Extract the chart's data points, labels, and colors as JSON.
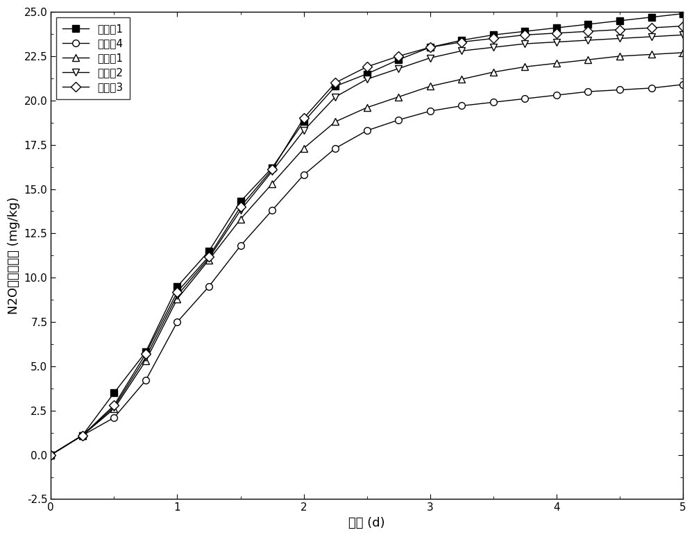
{
  "series": [
    {
      "label": "实施入1",
      "marker": "s",
      "marker_fill": "black",
      "line_color": "black",
      "x": [
        0,
        0.25,
        0.5,
        0.75,
        1.0,
        1.25,
        1.5,
        1.75,
        2.0,
        2.25,
        2.5,
        2.75,
        3.0,
        3.25,
        3.5,
        3.75,
        4.0,
        4.25,
        4.5,
        4.75,
        5.0
      ],
      "y": [
        0.0,
        1.1,
        3.5,
        5.8,
        9.5,
        11.5,
        14.3,
        16.2,
        18.8,
        20.8,
        21.5,
        22.3,
        23.0,
        23.4,
        23.7,
        23.9,
        24.1,
        24.3,
        24.5,
        24.7,
        24.9
      ]
    },
    {
      "label": "实施入4",
      "marker": "o",
      "marker_fill": "white",
      "line_color": "black",
      "x": [
        0,
        0.25,
        0.5,
        0.75,
        1.0,
        1.25,
        1.5,
        1.75,
        2.0,
        2.25,
        2.5,
        2.75,
        3.0,
        3.25,
        3.5,
        3.75,
        4.0,
        4.25,
        4.5,
        4.75,
        5.0
      ],
      "y": [
        0.0,
        1.1,
        2.1,
        4.2,
        7.5,
        9.5,
        11.8,
        13.8,
        15.8,
        17.3,
        18.3,
        18.9,
        19.4,
        19.7,
        19.9,
        20.1,
        20.3,
        20.5,
        20.6,
        20.7,
        20.9
      ]
    },
    {
      "label": "对比入1",
      "marker": "^",
      "marker_fill": "white",
      "line_color": "black",
      "x": [
        0,
        0.25,
        0.5,
        0.75,
        1.0,
        1.25,
        1.5,
        1.75,
        2.0,
        2.25,
        2.5,
        2.75,
        3.0,
        3.25,
        3.5,
        3.75,
        4.0,
        4.25,
        4.5,
        4.75,
        5.0
      ],
      "y": [
        0.0,
        1.1,
        2.6,
        5.3,
        8.8,
        11.0,
        13.3,
        15.3,
        17.3,
        18.8,
        19.6,
        20.2,
        20.8,
        21.2,
        21.6,
        21.9,
        22.1,
        22.3,
        22.5,
        22.6,
        22.7
      ]
    },
    {
      "label": "对比入2",
      "marker": "v",
      "marker_fill": "white",
      "line_color": "black",
      "x": [
        0,
        0.25,
        0.5,
        0.75,
        1.0,
        1.25,
        1.5,
        1.75,
        2.0,
        2.25,
        2.5,
        2.75,
        3.0,
        3.25,
        3.5,
        3.75,
        4.0,
        4.25,
        4.5,
        4.75,
        5.0
      ],
      "y": [
        0.0,
        1.1,
        2.7,
        5.5,
        9.0,
        11.1,
        13.8,
        16.0,
        18.3,
        20.2,
        21.2,
        21.8,
        22.4,
        22.8,
        23.0,
        23.2,
        23.3,
        23.4,
        23.5,
        23.6,
        23.7
      ]
    },
    {
      "label": "对比入3",
      "marker": "D",
      "marker_fill": "white",
      "line_color": "black",
      "x": [
        0,
        0.25,
        0.5,
        0.75,
        1.0,
        1.25,
        1.5,
        1.75,
        2.0,
        2.25,
        2.5,
        2.75,
        3.0,
        3.25,
        3.5,
        3.75,
        4.0,
        4.25,
        4.5,
        4.75,
        5.0
      ],
      "y": [
        0.0,
        1.1,
        2.8,
        5.7,
        9.2,
        11.2,
        14.0,
        16.1,
        19.0,
        21.0,
        21.9,
        22.5,
        23.0,
        23.3,
        23.5,
        23.7,
        23.8,
        23.9,
        24.0,
        24.1,
        24.2
      ]
    }
  ],
  "xlabel": "时间 (d)",
  "ylabel": "N2O累积排放量 (mg/kg)",
  "xlim": [
    0,
    5
  ],
  "ylim": [
    -2.5,
    25.0
  ],
  "xticks": [
    0,
    1,
    2,
    3,
    4,
    5
  ],
  "yticks": [
    -2.5,
    0.0,
    2.5,
    5.0,
    7.5,
    10.0,
    12.5,
    15.0,
    17.5,
    20.0,
    22.5,
    25.0
  ],
  "background_color": "#ffffff",
  "legend_loc": "upper left",
  "markersize": 7,
  "linewidth": 1.0
}
